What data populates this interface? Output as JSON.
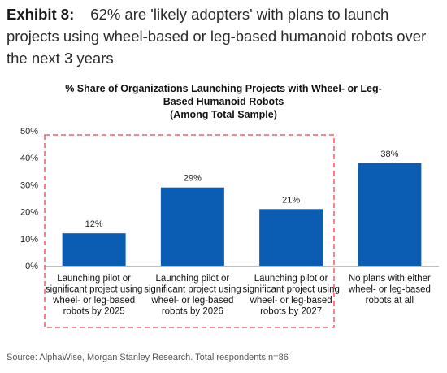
{
  "header": {
    "exhibit_label": "Exhibit 8:",
    "headline": "62% are 'likely adopters' with plans to launch projects using wheel-based or leg-based humanoid robots over the next 3 years"
  },
  "chart_data": {
    "type": "bar",
    "title": "% Share of Organizations Launching Projects with Wheel- or Leg-\nBased Humanoid Robots\n(Among Total Sample)",
    "categories": [
      [
        "Launching pilot or",
        "significant project using",
        "wheel- or leg-based",
        "robots by 2025"
      ],
      [
        "Launching pilot or",
        "significant project using",
        "wheel- or leg-based",
        "robots by 2026"
      ],
      [
        "Launching pilot or",
        "significant project using",
        "wheel- or leg-based",
        "robots by 2027"
      ],
      [
        "No plans with either",
        "wheel- or leg-based",
        "robots at all"
      ]
    ],
    "values": [
      12,
      29,
      21,
      38
    ],
    "data_labels": [
      "12%",
      "29%",
      "21%",
      "38%"
    ],
    "ylim": [
      0,
      50
    ],
    "yticks": [
      "0%",
      "10%",
      "20%",
      "30%",
      "40%",
      "50%"
    ],
    "xlabel": "",
    "ylabel": "",
    "grid": false,
    "legend": "none",
    "highlight_box": "dashed box around first three categories",
    "bar_color": "#0b5db3",
    "highlight_color": "#e8414b"
  },
  "source": "Source: AlphaWise, Morgan Stanley Research. Total respondents n=86"
}
